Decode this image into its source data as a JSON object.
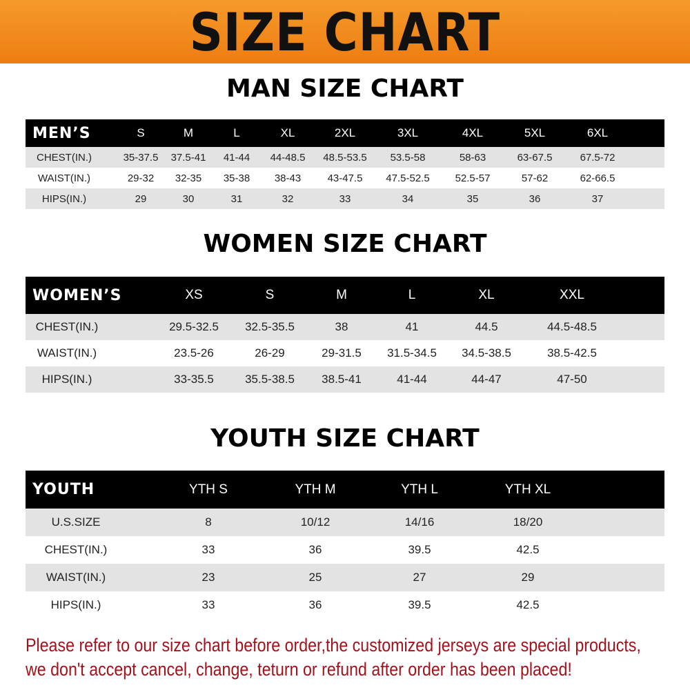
{
  "banner": "SIZE CHART",
  "men": {
    "title": "MAN SIZE CHART",
    "header": "MEN’S",
    "sizes": [
      "S",
      "M",
      "L",
      "XL",
      "2XL",
      "3XL",
      "4XL",
      "5XL",
      "6XL"
    ],
    "rows": [
      {
        "label": "CHEST(IN.)",
        "values": [
          "35-37.5",
          "37.5-41",
          "41-44",
          "44-48.5",
          "48.5-53.5",
          "53.5-58",
          "58-63",
          "63-67.5",
          "67.5-72"
        ]
      },
      {
        "label": "WAIST(IN.)",
        "values": [
          "29-32",
          "32-35",
          "35-38",
          "38-43",
          "43-47.5",
          "47.5-52.5",
          "52.5-57",
          "57-62",
          "62-66.5"
        ]
      },
      {
        "label": "HIPS(IN.)",
        "values": [
          "29",
          "30",
          "31",
          "32",
          "33",
          "34",
          "35",
          "36",
          "37"
        ]
      }
    ]
  },
  "women": {
    "title": "WOMEN SIZE CHART",
    "header": "WOMEN’S",
    "sizes": [
      "XS",
      "S",
      "M",
      "L",
      "XL",
      "XXL"
    ],
    "rows": [
      {
        "label": "CHEST(IN.)",
        "values": [
          "29.5-32.5",
          "32.5-35.5",
          "38",
          "41",
          "44.5",
          "44.5-48.5"
        ]
      },
      {
        "label": "WAIST(IN.)",
        "values": [
          "23.5-26",
          "26-29",
          "29-31.5",
          "31.5-34.5",
          "34.5-38.5",
          "38.5-42.5"
        ]
      },
      {
        "label": "HIPS(IN.)",
        "values": [
          "33-35.5",
          "35.5-38.5",
          "38.5-41",
          "41-44",
          "44-47",
          "47-50"
        ]
      }
    ]
  },
  "youth": {
    "title": "YOUTH SIZE CHART",
    "header": "YOUTH",
    "sizes": [
      "YTH S",
      "YTH M",
      "YTH L",
      "YTH XL"
    ],
    "rows": [
      {
        "label": "U.S.SIZE",
        "values": [
          "8",
          "10/12",
          "14/16",
          "18/20"
        ]
      },
      {
        "label": "CHEST(IN.)",
        "values": [
          "33",
          "36",
          "39.5",
          "42.5"
        ]
      },
      {
        "label": "WAIST(IN.)",
        "values": [
          "23",
          "25",
          "27",
          "29"
        ]
      },
      {
        "label": "HIPS(IN.)",
        "values": [
          "33",
          "36",
          "39.5",
          "42.5"
        ]
      }
    ]
  },
  "note": [
    "Please refer to our size chart before order,the customized jerseys are special products,",
    "we don't accept cancel, change, teturn or refund after order has been placed!"
  ],
  "colors": {
    "banner": "#f0851a",
    "header_row": "#000000",
    "stripe": "#e3e3e3",
    "note": "#a3121c"
  }
}
